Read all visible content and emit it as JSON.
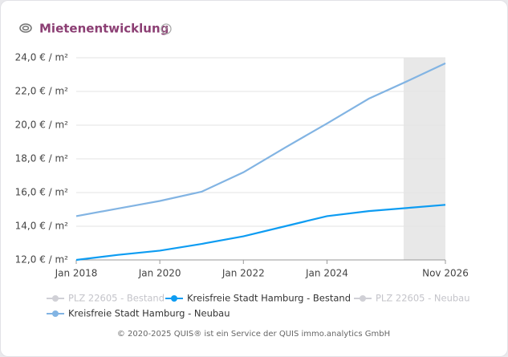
{
  "chart_data": {
    "type": "line",
    "title": "Mietenentwicklung",
    "x": [
      "2018-01",
      "2019-01",
      "2020-01",
      "2021-01",
      "2022-01",
      "2023-01",
      "2024-01",
      "2025-01",
      "2026-01",
      "2026-11"
    ],
    "xlim": [
      "2018-01",
      "2026-11"
    ],
    "xticks": [
      {
        "value": "2018-01",
        "label": "Jan 2018"
      },
      {
        "value": "2020-01",
        "label": "Jan 2020"
      },
      {
        "value": "2022-01",
        "label": "Jan 2022"
      },
      {
        "value": "2024-01",
        "label": "Jan 2024"
      },
      {
        "value": "2026-11",
        "label": "Nov 2026"
      }
    ],
    "ylim": [
      12,
      24
    ],
    "yticks": [
      {
        "value": 12,
        "label": "12,0 € / m²"
      },
      {
        "value": 14,
        "label": "14,0 € / m²"
      },
      {
        "value": 16,
        "label": "16,0 € / m²"
      },
      {
        "value": 18,
        "label": "18,0 € / m²"
      },
      {
        "value": 20,
        "label": "20,0 € / m²"
      },
      {
        "value": 22,
        "label": "22,0 € / m²"
      },
      {
        "value": 24,
        "label": "24,0 € / m²"
      }
    ],
    "grid": true,
    "forecast_from": "2025-11",
    "series": [
      {
        "name": "PLZ 22605 - Bestand",
        "color": "#d0d0d6",
        "visible": false
      },
      {
        "name": "Kreisfreie Stadt Hamburg - Bestand",
        "color": "#0d9cf2",
        "values": [
          12.0,
          12.3,
          12.55,
          12.95,
          13.4,
          14.0,
          14.6,
          14.9,
          15.1,
          15.27
        ]
      },
      {
        "name": "PLZ 22605 - Neubau",
        "color": "#d0d0d6",
        "visible": false
      },
      {
        "name": "Kreisfreie Stadt Hamburg - Neubau",
        "color": "#82b4e3",
        "values": [
          14.6,
          15.05,
          15.5,
          16.05,
          17.2,
          18.67,
          20.1,
          21.57,
          22.7,
          23.67
        ]
      }
    ],
    "footer": "© 2020-2025 QUIS® ist ein Service der QUIS immo.analytics GmbH"
  }
}
